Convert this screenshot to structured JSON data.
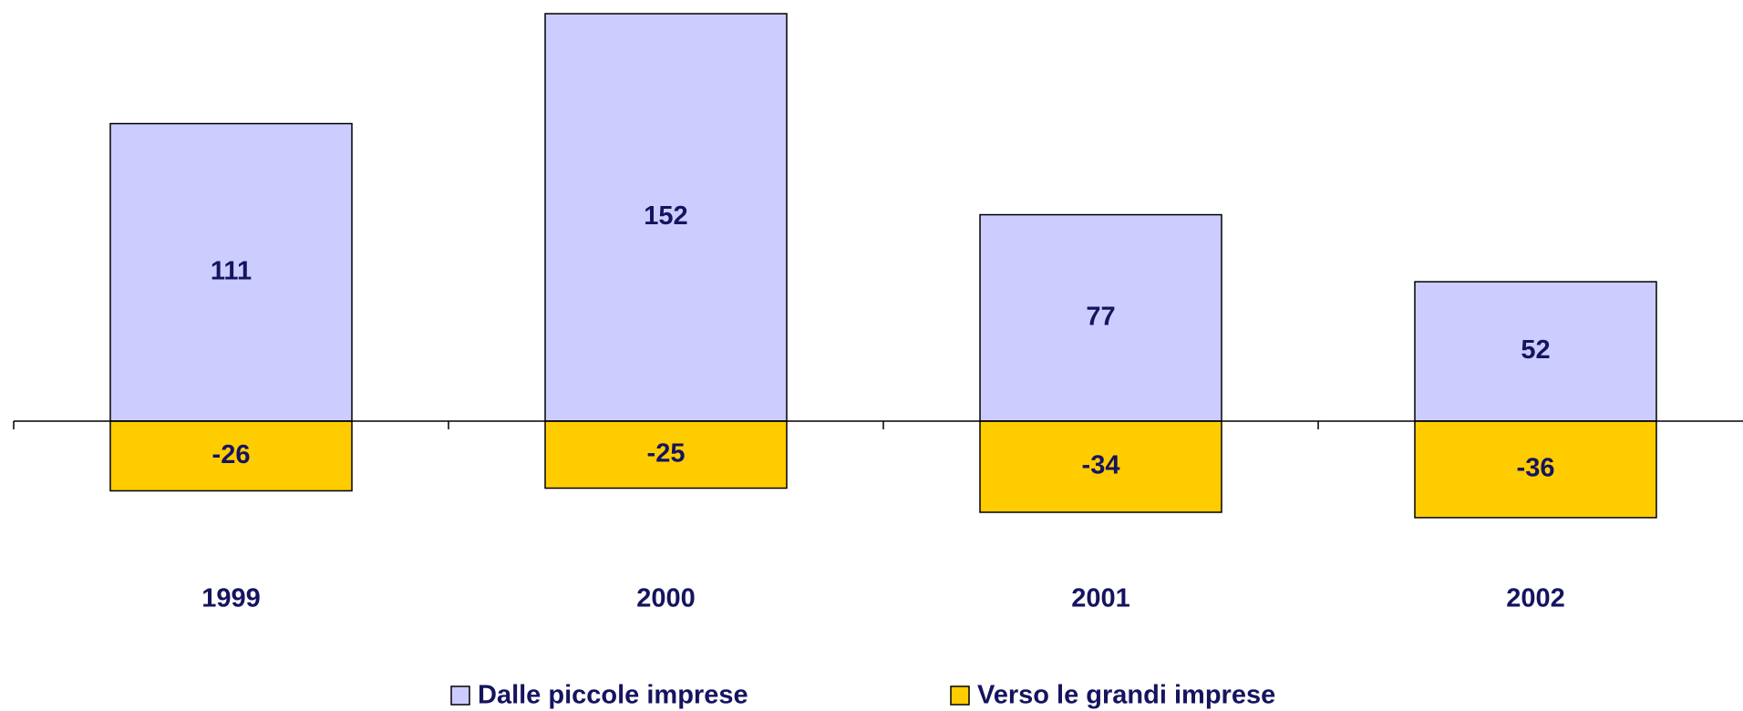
{
  "chart_data": {
    "type": "bar",
    "stacked": true,
    "categories": [
      "1999",
      "2000",
      "2001",
      "2002"
    ],
    "series": [
      {
        "name": "Dalle piccole imprese",
        "color": "#ccccff",
        "values": [
          111,
          152,
          77,
          52
        ]
      },
      {
        "name": "Verso le grandi imprese",
        "color": "#ffcc00",
        "values": [
          -26,
          -25,
          -34,
          -36
        ]
      }
    ],
    "legend": "bottom",
    "grid": false
  }
}
